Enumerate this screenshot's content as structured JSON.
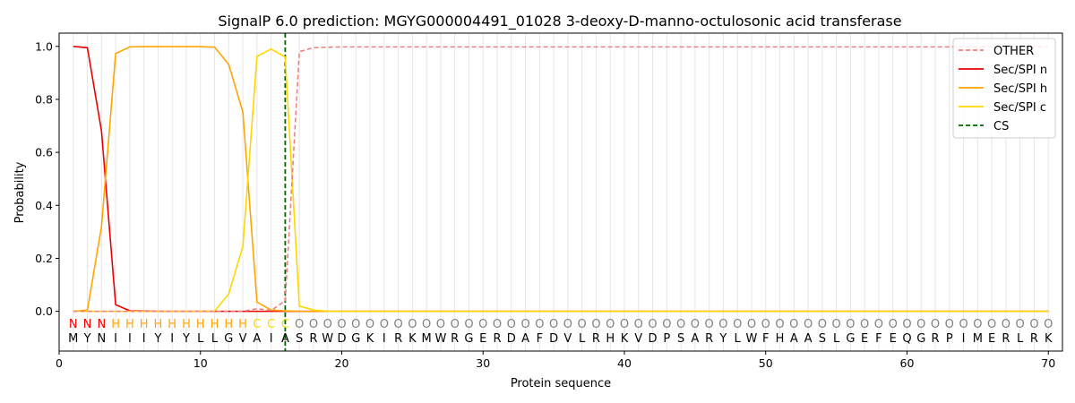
{
  "chart_data": {
    "type": "line",
    "title": "SignalP 6.0 prediction: MGYG000004491_01028 3-deoxy-D-manno-octulosonic acid transferase",
    "xlabel": "Protein sequence",
    "ylabel": "Probability",
    "xlim": [
      0,
      71
    ],
    "ylim": [
      -0.15,
      1.05
    ],
    "xticks": [
      0,
      10,
      20,
      30,
      40,
      50,
      60,
      70
    ],
    "yticks": [
      0.0,
      0.2,
      0.4,
      0.6,
      0.8,
      1.0
    ],
    "ytick_labels": [
      "0.0",
      "0.2",
      "0.4",
      "0.6",
      "0.8",
      "1.0"
    ],
    "grid": "vertical lines at each residue",
    "legend_position": "top-right",
    "sequence": [
      "M",
      "Y",
      "N",
      "I",
      "I",
      "I",
      "Y",
      "I",
      "Y",
      "L",
      "L",
      "G",
      "V",
      "A",
      "I",
      "A",
      "S",
      "R",
      "W",
      "D",
      "G",
      "K",
      "I",
      "R",
      "K",
      "M",
      "W",
      "R",
      "G",
      "E",
      "R",
      "D",
      "A",
      "F",
      "D",
      "V",
      "L",
      "R",
      "H",
      "K",
      "V",
      "D",
      "P",
      "S",
      "A",
      "R",
      "Y",
      "L",
      "W",
      "F",
      "H",
      "A",
      "A",
      "S",
      "L",
      "G",
      "E",
      "F",
      "E",
      "Q",
      "G",
      "R",
      "P",
      "I",
      "M",
      "E",
      "R",
      "L",
      "R",
      "K"
    ],
    "annotations": [
      "N",
      "N",
      "N",
      "H",
      "H",
      "H",
      "H",
      "H",
      "H",
      "H",
      "H",
      "H",
      "H",
      "C",
      "C",
      "C",
      "O",
      "O",
      "O",
      "O",
      "O",
      "O",
      "O",
      "O",
      "O",
      "O",
      "O",
      "O",
      "O",
      "O",
      "O",
      "O",
      "O",
      "O",
      "O",
      "O",
      "O",
      "O",
      "O",
      "O",
      "O",
      "O",
      "O",
      "O",
      "O",
      "O",
      "O",
      "O",
      "O",
      "O",
      "O",
      "O",
      "O",
      "O",
      "O",
      "O",
      "O",
      "O",
      "O",
      "O",
      "O",
      "O",
      "O",
      "O",
      "O",
      "O",
      "O",
      "O",
      "O",
      "O"
    ],
    "annotation_colors": {
      "N": "#ff0000",
      "H": "#ffa500",
      "C": "#ffd700",
      "O": "#808080"
    },
    "cleavage_site": 16,
    "series": [
      {
        "name": "OTHER",
        "color": "#f08080",
        "dash": "dashed",
        "values": [
          0.0,
          0.0,
          0.0,
          0.0,
          0.0,
          0.0,
          0.0,
          0.0,
          0.0,
          0.0,
          0.0,
          0.0,
          0.0,
          0.01,
          0.003,
          0.04,
          0.98,
          0.995,
          0.997,
          0.998,
          0.998,
          0.998,
          0.998,
          0.998,
          0.998,
          0.998,
          0.998,
          0.998,
          0.998,
          0.998,
          0.998,
          0.998,
          0.998,
          0.998,
          0.998,
          0.998,
          0.998,
          0.998,
          0.998,
          0.998,
          0.998,
          0.998,
          0.998,
          0.998,
          0.998,
          0.998,
          0.998,
          0.998,
          0.998,
          0.998,
          0.998,
          0.998,
          0.998,
          0.998,
          0.998,
          0.998,
          0.998,
          0.998,
          0.998,
          0.998,
          0.998,
          0.998,
          0.998,
          0.998,
          0.998,
          0.998,
          0.998,
          0.998,
          0.998,
          0.998
        ]
      },
      {
        "name": "Sec/SPI n",
        "color": "#ee0000",
        "dash": "solid",
        "values": [
          1.0,
          0.995,
          0.68,
          0.025,
          0.002,
          0.001,
          0.0,
          0.0,
          0.0,
          0.0,
          0.0,
          0.0,
          0.0,
          0.0,
          0.0,
          0.0,
          0.0,
          0.0,
          0.0,
          0.0,
          0.0,
          0.0,
          0.0,
          0.0,
          0.0,
          0.0,
          0.0,
          0.0,
          0.0,
          0.0,
          0.0,
          0.0,
          0.0,
          0.0,
          0.0,
          0.0,
          0.0,
          0.0,
          0.0,
          0.0,
          0.0,
          0.0,
          0.0,
          0.0,
          0.0,
          0.0,
          0.0,
          0.0,
          0.0,
          0.0,
          0.0,
          0.0,
          0.0,
          0.0,
          0.0,
          0.0,
          0.0,
          0.0,
          0.0,
          0.0,
          0.0,
          0.0,
          0.0,
          0.0,
          0.0,
          0.0,
          0.0,
          0.0,
          0.0,
          0.0
        ]
      },
      {
        "name": "Sec/SPI h",
        "color": "#ffa500",
        "dash": "solid",
        "values": [
          0.0,
          0.005,
          0.32,
          0.973,
          0.998,
          0.999,
          0.999,
          0.999,
          0.999,
          0.999,
          0.997,
          0.932,
          0.752,
          0.035,
          0.005,
          0.002,
          0.0,
          0.0,
          0.0,
          0.0,
          0.0,
          0.0,
          0.0,
          0.0,
          0.0,
          0.0,
          0.0,
          0.0,
          0.0,
          0.0,
          0.0,
          0.0,
          0.0,
          0.0,
          0.0,
          0.0,
          0.0,
          0.0,
          0.0,
          0.0,
          0.0,
          0.0,
          0.0,
          0.0,
          0.0,
          0.0,
          0.0,
          0.0,
          0.0,
          0.0,
          0.0,
          0.0,
          0.0,
          0.0,
          0.0,
          0.0,
          0.0,
          0.0,
          0.0,
          0.0,
          0.0,
          0.0,
          0.0,
          0.0,
          0.0,
          0.0,
          0.0,
          0.0,
          0.0,
          0.0
        ]
      },
      {
        "name": "Sec/SPI c",
        "color": "#ffd700",
        "dash": "solid",
        "values": [
          0.0,
          0.0,
          0.0,
          0.0,
          0.0,
          0.0,
          0.0,
          0.0,
          0.0,
          0.0,
          0.001,
          0.065,
          0.245,
          0.962,
          0.99,
          0.96,
          0.02,
          0.005,
          0.0,
          0.0,
          0.0,
          0.0,
          0.0,
          0.0,
          0.0,
          0.0,
          0.0,
          0.0,
          0.0,
          0.0,
          0.0,
          0.0,
          0.0,
          0.0,
          0.0,
          0.0,
          0.0,
          0.0,
          0.0,
          0.0,
          0.0,
          0.0,
          0.0,
          0.0,
          0.0,
          0.0,
          0.0,
          0.0,
          0.0,
          0.0,
          0.0,
          0.0,
          0.0,
          0.0,
          0.0,
          0.0,
          0.0,
          0.0,
          0.0,
          0.0,
          0.0,
          0.0,
          0.0,
          0.0,
          0.0,
          0.0,
          0.0,
          0.0,
          0.0,
          0.0
        ]
      }
    ],
    "legend": [
      {
        "label": "OTHER",
        "color": "#f08080",
        "dash": "dashed"
      },
      {
        "label": "Sec/SPI n",
        "color": "#ee0000",
        "dash": "solid"
      },
      {
        "label": "Sec/SPI h",
        "color": "#ffa500",
        "dash": "solid"
      },
      {
        "label": "Sec/SPI c",
        "color": "#ffd700",
        "dash": "solid"
      },
      {
        "label": "CS",
        "color": "#006400",
        "dash": "dashed"
      }
    ]
  }
}
